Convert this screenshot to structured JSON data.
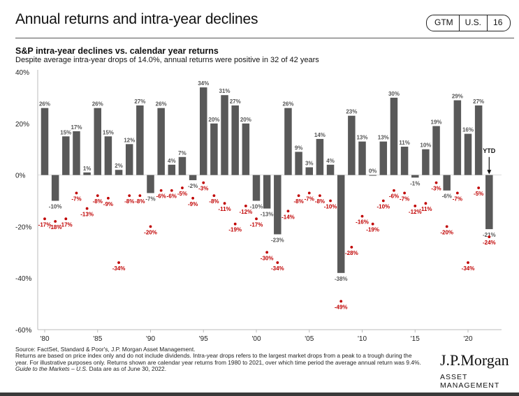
{
  "header": {
    "title": "Annual returns and intra-year declines",
    "badge": [
      "GTM",
      "U.S.",
      "16"
    ]
  },
  "subtitle": "S&P intra-year declines vs. calendar year returns",
  "description": "Despite average intra-year drops of 14.0%, annual returns were positive in 32 of 42 years",
  "colors": {
    "bar": "#595959",
    "dot": "#c00000",
    "axis": "#bbbbbb"
  },
  "chart_data": {
    "type": "bar",
    "ylim": [
      -60,
      40
    ],
    "yticks": [
      40,
      20,
      0,
      -20,
      -40,
      -60
    ],
    "ytick_labels": [
      "40%",
      "20%",
      "0%",
      "-20%",
      "-40%",
      "-60%"
    ],
    "xtick_years": [
      1980,
      1985,
      1990,
      1995,
      2000,
      2005,
      2010,
      2015,
      2020
    ],
    "xtick_labels": [
      "'80",
      "'85",
      "'90",
      "'95",
      "'00",
      "'05",
      "'10",
      "'15",
      "'20"
    ],
    "grid": false,
    "years": [
      1980,
      1981,
      1982,
      1983,
      1984,
      1985,
      1986,
      1987,
      1988,
      1989,
      1990,
      1991,
      1992,
      1993,
      1994,
      1995,
      1996,
      1997,
      1998,
      1999,
      2000,
      2001,
      2002,
      2003,
      2004,
      2005,
      2006,
      2007,
      2008,
      2009,
      2010,
      2011,
      2012,
      2013,
      2014,
      2015,
      2016,
      2017,
      2018,
      2019,
      2020,
      2021,
      2022
    ],
    "series": [
      {
        "type": "bar",
        "values": [
          26,
          -10,
          15,
          17,
          1,
          26,
          15,
          2,
          12,
          27,
          -7,
          26,
          4,
          7,
          -2,
          34,
          20,
          31,
          27,
          20,
          -10,
          -13,
          -23,
          26,
          9,
          3,
          14,
          4,
          -38,
          23,
          13,
          0,
          13,
          30,
          11,
          -1,
          10,
          19,
          -6,
          29,
          16,
          27,
          -21
        ],
        "labels": [
          "26%",
          "-10%",
          "15%",
          "17%",
          "1%",
          "26%",
          "15%",
          "2%",
          "12%",
          "27%",
          "-7%",
          "26%",
          "4%",
          "7%",
          "-2%",
          "34%",
          "20%",
          "31%",
          "27%",
          "20%",
          "-10%",
          "-13%",
          "-23%",
          "26%",
          "9%",
          "3%",
          "14%",
          "4%",
          "-38%",
          "23%",
          "13%",
          "0%",
          "13%",
          "30%",
          "11%",
          "-1%",
          "10%",
          "19%",
          "-6%",
          "29%",
          "16%",
          "27%",
          "-21%"
        ]
      },
      {
        "type": "scatter",
        "values": [
          -17,
          -18,
          -17,
          -7,
          -13,
          -8,
          -9,
          -34,
          -8,
          -8,
          -20,
          -6,
          -6,
          -5,
          -9,
          -3,
          -8,
          -11,
          -19,
          -12,
          -17,
          -30,
          -34,
          -14,
          -8,
          -7,
          -8,
          -10,
          -49,
          -28,
          -16,
          -19,
          -10,
          -6,
          -7,
          -12,
          -11,
          -3,
          -20,
          -7,
          -34,
          -5,
          -24
        ],
        "labels": [
          "-17%",
          "-18%",
          "-17%",
          "-7%",
          "-13%",
          "-8%",
          "-9%",
          "-34%",
          "-8%",
          "-8%",
          "-20%",
          "-6%",
          "-6%",
          "-5%",
          "-9%",
          "-3%",
          "-8%",
          "-11%",
          "-19%",
          "-12%",
          "-17%",
          "-30%",
          "-34%",
          "-14%",
          "-8%",
          "-7%",
          "-8%",
          "-10%",
          "-49%",
          "-28%",
          "-16%",
          "-19%",
          "-10%",
          "-6%",
          "-7%",
          "-12%",
          "-11%",
          "-3%",
          "-20%",
          "-7%",
          "-34%",
          "-5%",
          "-24%"
        ]
      }
    ],
    "annotation": "YTD"
  },
  "footnote": {
    "source": "Source: FactSet, Standard & Poor's, J.P. Morgan Asset Management.",
    "body": "Returns are based on price index only and do not include dividends. Intra-year drops refers to the largest market drops from a peak to a trough during the year. For illustrative purposes only. Returns shown are calendar year returns from 1980 to 2021, over which time period the average annual return was 9.4%.",
    "guide_italic": "Guide to the Markets – U.S.",
    "guide_rest": " Data are as of June 30, 2022."
  },
  "logo": {
    "name": "J.P.Morgan",
    "sub": "ASSET MANAGEMENT"
  }
}
